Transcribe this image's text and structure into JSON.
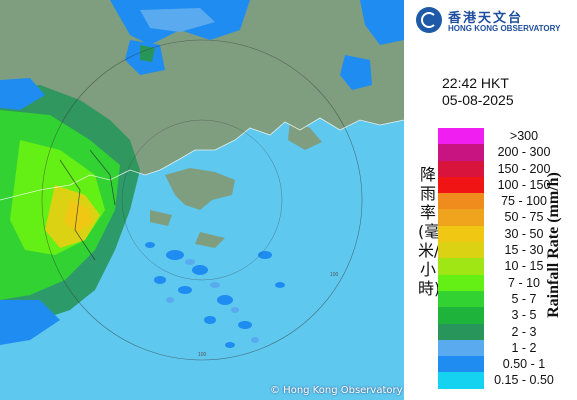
{
  "header": {
    "logo_chinese": "香港天文台",
    "logo_english": "HONG KONG OBSERVATORY"
  },
  "timestamp": {
    "time": "22:42 HKT",
    "date": "05-08-2025"
  },
  "map": {
    "copyright": "© Hong Kong Observatory",
    "ring_labels": [
      "100",
      "100"
    ]
  },
  "legend": {
    "title_chinese": "降雨率(毫米/小時)",
    "title_english": "Rainfall Rate (mm/h)",
    "items": [
      {
        "label": ">300",
        "color": "#f01ef0"
      },
      {
        "label": "200 - 300",
        "color": "#c81480"
      },
      {
        "label": "150 - 200",
        "color": "#d8143c"
      },
      {
        "label": "100 - 150",
        "color": "#f01414"
      },
      {
        "label": "75 - 100",
        "color": "#f08c1e"
      },
      {
        "label": "50 - 75",
        "color": "#f0a41e"
      },
      {
        "label": "30 - 50",
        "color": "#f0c814"
      },
      {
        "label": "15 - 30",
        "color": "#dcd214"
      },
      {
        "label": "10 - 15",
        "color": "#a0e614"
      },
      {
        "label": "7 - 10",
        "color": "#64f014"
      },
      {
        "label": "5 - 7",
        "color": "#32d232"
      },
      {
        "label": "3 - 5",
        "color": "#1eb43c"
      },
      {
        "label": "2 - 3",
        "color": "#28965a"
      },
      {
        "label": "1 - 2",
        "color": "#5aaaf0"
      },
      {
        "label": "0.50 - 1",
        "color": "#1e8cf0"
      },
      {
        "label": "0.15 - 0.50",
        "color": "#14d2f0"
      }
    ]
  }
}
